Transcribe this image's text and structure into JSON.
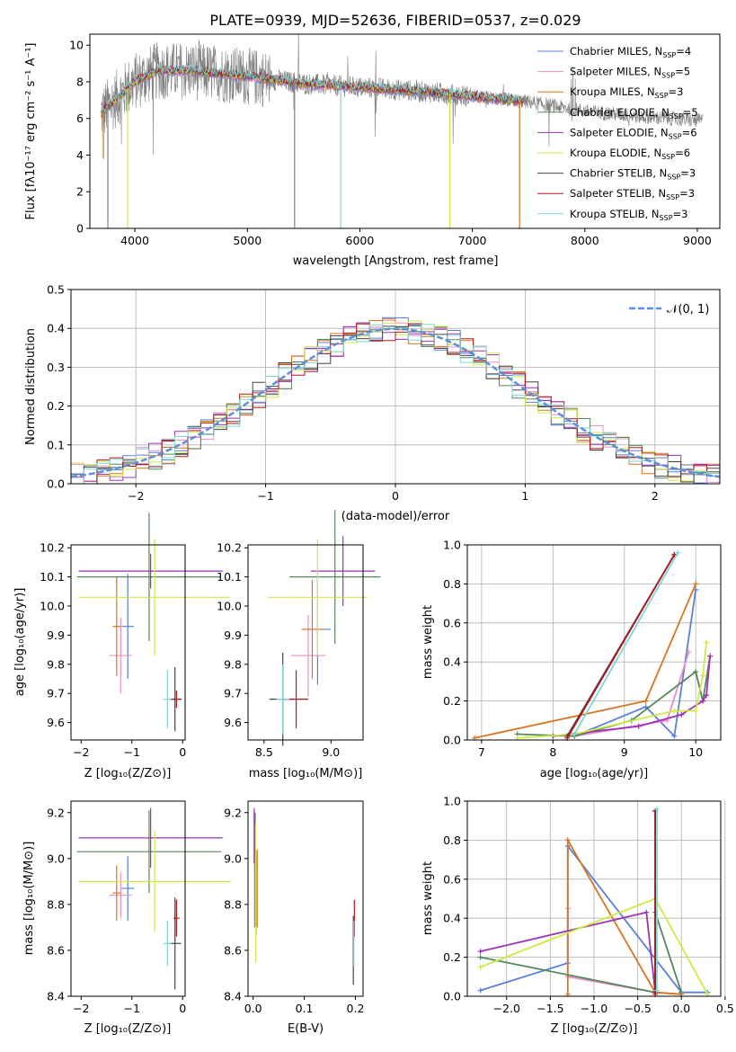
{
  "title": "PLATE=0939, MJD=52636, FIBERID=0537, z=0.029",
  "series_styles": [
    {
      "name": "Chabrier MILES",
      "nssp": "4",
      "color": "#5b7fd9"
    },
    {
      "name": "Salpeter MILES",
      "nssp": "5",
      "color": "#e88fc7"
    },
    {
      "name": "Kroupa MILES",
      "nssp": "3",
      "color": "#d9741f"
    },
    {
      "name": "Chabrier ELODIE",
      "nssp": "5",
      "color": "#55875c"
    },
    {
      "name": "Salpeter ELODIE",
      "nssp": "6",
      "color": "#9b33b5"
    },
    {
      "name": "Kroupa ELODIE",
      "nssp": "6",
      "color": "#cdea45"
    },
    {
      "name": "Chabrier STELIB",
      "nssp": "3",
      "color": "#444444"
    },
    {
      "name": "Salpeter STELIB",
      "nssp": "3",
      "color": "#b5161c"
    },
    {
      "name": "Kroupa STELIB",
      "nssp": "3",
      "color": "#7fd6d6"
    }
  ],
  "chart_data": [
    {
      "type": "line",
      "panel": "spectrum",
      "title": "PLATE=0939, MJD=52636, FIBERID=0537, z=0.029",
      "xlabel": "wavelength [Angstrom, rest frame]",
      "ylabel": "Flux [fλ10⁻¹⁷ erg cm⁻² s⁻¹ A⁻¹]",
      "xlim": [
        3600,
        9200
      ],
      "ylim": [
        0,
        10.6
      ],
      "xticks": [
        "4000",
        "5000",
        "6000",
        "7000",
        "8000",
        "9000"
      ],
      "yticks": [
        "0",
        "2",
        "4",
        "6",
        "8",
        "10"
      ],
      "data_color": "#808080",
      "continuum": {
        "x": [
          3700,
          4000,
          4200,
          4500,
          5000,
          5500,
          6000,
          6500,
          7000,
          7500,
          8000,
          8500,
          9000
        ],
        "y": [
          6.3,
          8.0,
          8.6,
          8.6,
          8.3,
          7.9,
          7.7,
          7.5,
          7.2,
          6.9,
          6.4,
          6.1,
          5.9
        ]
      },
      "model_range": [
        3700,
        7450
      ],
      "legend_position": "top-right"
    },
    {
      "type": "line",
      "panel": "residuals",
      "xlabel": "(data-model)/error",
      "ylabel": "Normed distribution",
      "xlim": [
        -2.5,
        2.5
      ],
      "ylim": [
        0,
        0.5
      ],
      "xticks": [
        "−2",
        "−1",
        "0",
        "1",
        "2"
      ],
      "yticks": [
        "0.0",
        "0.1",
        "0.2",
        "0.3",
        "0.4",
        "0.5"
      ],
      "gaussian_label": "𝒩(0, 1)",
      "gaussian_color": "#5b8fd9",
      "bin_width": 0.1,
      "legend_position": "top-right"
    },
    {
      "type": "scatter",
      "panel": "age-vs-Z",
      "xlabel": "Z [log₁₀(Z/Z⊙)]",
      "ylabel": "age  [log₁₀(age/yr)]",
      "xlim": [
        -2.2,
        0.05
      ],
      "ylim": [
        9.54,
        10.21
      ],
      "xticks": [
        "−2",
        "−1",
        "0"
      ],
      "xtick_values": [
        -2,
        -1,
        0
      ],
      "yticks": [
        "9.6",
        "9.7",
        "9.8",
        "9.9",
        "10.0",
        "10.1",
        "10.2"
      ],
      "ytick_values": [
        9.6,
        9.7,
        9.8,
        9.9,
        10.0,
        10.1,
        10.2
      ],
      "points": [
        {
          "x": -1.08,
          "y": 9.93,
          "xerr": 0.12,
          "yerr": 0.18
        },
        {
          "x": -1.22,
          "y": 9.83,
          "xerr": 0.22,
          "yerr": 0.13
        },
        {
          "x": -1.3,
          "y": 9.93,
          "xerr": 0.08,
          "yerr": 0.17
        },
        {
          "x": -0.66,
          "y": 10.1,
          "xerr": 1.42,
          "yerr": 0.22
        },
        {
          "x": -0.63,
          "y": 10.12,
          "xerr": 1.42,
          "yerr": 0.06
        },
        {
          "x": -0.55,
          "y": 10.03,
          "xerr": 1.5,
          "yerr": 0.2
        },
        {
          "x": -0.15,
          "y": 9.68,
          "xerr": 0.12,
          "yerr": 0.11
        },
        {
          "x": -0.12,
          "y": 9.68,
          "xerr": 0.1,
          "yerr": 0.03
        },
        {
          "x": -0.3,
          "y": 9.68,
          "xerr": 0.08,
          "yerr": 0.1
        }
      ]
    },
    {
      "type": "scatter",
      "panel": "age-vs-mass",
      "xlabel": "mass [log₁₀(M/M⊙)]",
      "ylabel": "",
      "xlim": [
        8.38,
        9.24
      ],
      "ylim": [
        9.54,
        10.21
      ],
      "xticks": [
        "8.5",
        "9.0"
      ],
      "xtick_values": [
        8.5,
        9.0
      ],
      "yticks": [
        "9.6",
        "9.7",
        "9.8",
        "9.9",
        "10.0",
        "10.1",
        "10.2"
      ],
      "ytick_values": [
        9.6,
        9.7,
        9.8,
        9.9,
        10.0,
        10.1,
        10.2
      ],
      "points": [
        {
          "x": 8.9,
          "y": 9.92,
          "xerr": 0.1,
          "yerr": 0.19
        },
        {
          "x": 8.83,
          "y": 9.83,
          "xerr": 0.13,
          "yerr": 0.14
        },
        {
          "x": 8.86,
          "y": 9.92,
          "xerr": 0.08,
          "yerr": 0.17
        },
        {
          "x": 9.03,
          "y": 10.1,
          "xerr": 0.34,
          "yerr": 0.23
        },
        {
          "x": 9.09,
          "y": 10.12,
          "xerr": 0.24,
          "yerr": 0.12
        },
        {
          "x": 8.9,
          "y": 10.03,
          "xerr": 0.37,
          "yerr": 0.2
        },
        {
          "x": 8.64,
          "y": 9.68,
          "xerr": 0.1,
          "yerr": 0.16
        },
        {
          "x": 8.74,
          "y": 9.68,
          "xerr": 0.09,
          "yerr": 0.1
        },
        {
          "x": 8.64,
          "y": 9.68,
          "xerr": 0.05,
          "yerr": 0.12
        }
      ]
    },
    {
      "type": "line",
      "panel": "weight-vs-age",
      "xlabel": "age  [log₁₀(age/yr)]",
      "ylabel": "mass weight",
      "xlim": [
        6.8,
        10.35
      ],
      "ylim": [
        0,
        1
      ],
      "xticks": [
        "7",
        "8",
        "9",
        "10"
      ],
      "xtick_values": [
        7,
        8,
        9,
        10
      ],
      "yticks": [
        "0.0",
        "0.2",
        "0.4",
        "0.6",
        "0.8",
        "1.0"
      ],
      "ytick_values": [
        0,
        0.2,
        0.4,
        0.6,
        0.8,
        1.0
      ],
      "series": [
        {
          "x": [
            8.3,
            9.3,
            9.7,
            10.0
          ],
          "y": [
            0.02,
            0.17,
            0.02,
            0.77
          ]
        },
        {
          "x": [
            8.3,
            9.6,
            9.9
          ],
          "y": [
            0.02,
            0.1,
            0.45
          ]
        },
        {
          "x": [
            6.9,
            9.3,
            10.0
          ],
          "y": [
            0.01,
            0.2,
            0.8
          ]
        },
        {
          "x": [
            7.5,
            8.3,
            9.1,
            10.0,
            10.1,
            10.2
          ],
          "y": [
            0.03,
            0.02,
            0.1,
            0.35,
            0.2,
            0.43
          ]
        },
        {
          "x": [
            8.0,
            9.2,
            9.8,
            10.1,
            10.15,
            10.2
          ],
          "y": [
            0.02,
            0.07,
            0.13,
            0.2,
            0.23,
            0.43
          ]
        },
        {
          "x": [
            7.5,
            8.3,
            9.7,
            10.0,
            10.1,
            10.15
          ],
          "y": [
            0.01,
            0.03,
            0.15,
            0.15,
            0.33,
            0.5
          ]
        },
        {
          "x": [
            8.2,
            9.7
          ],
          "y": [
            0.02,
            0.95
          ]
        },
        {
          "x": [
            8.2,
            9.7
          ],
          "y": [
            0.01,
            0.95
          ]
        },
        {
          "x": [
            8.3,
            9.75
          ],
          "y": [
            0.03,
            0.96
          ]
        }
      ]
    },
    {
      "type": "scatter",
      "panel": "mass-vs-Z",
      "xlabel": "Z [log₁₀(Z/Z⊙)]",
      "ylabel": "mass [log₁₀(M/M⊙)]",
      "xlim": [
        -2.2,
        0.05
      ],
      "ylim": [
        8.4,
        9.25
      ],
      "xticks": [
        "−2",
        "−1",
        "0"
      ],
      "xtick_values": [
        -2,
        -1,
        0
      ],
      "yticks": [
        "8.4",
        "8.6",
        "8.8",
        "9.0",
        "9.2"
      ],
      "ytick_values": [
        8.4,
        8.6,
        8.8,
        9.0,
        9.2
      ],
      "points": [
        {
          "x": -1.08,
          "y": 8.87,
          "xerr": 0.12,
          "yerr": 0.14
        },
        {
          "x": -1.22,
          "y": 8.84,
          "xerr": 0.22,
          "yerr": 0.1
        },
        {
          "x": -1.3,
          "y": 8.85,
          "xerr": 0.08,
          "yerr": 0.12
        },
        {
          "x": -0.66,
          "y": 9.03,
          "xerr": 1.42,
          "yerr": 0.18
        },
        {
          "x": -0.63,
          "y": 9.09,
          "xerr": 1.42,
          "yerr": 0.13
        },
        {
          "x": -0.55,
          "y": 8.9,
          "xerr": 1.5,
          "yerr": 0.22
        },
        {
          "x": -0.15,
          "y": 8.63,
          "xerr": 0.12,
          "yerr": 0.2
        },
        {
          "x": -0.12,
          "y": 8.74,
          "xerr": 0.06,
          "yerr": 0.08
        },
        {
          "x": -0.3,
          "y": 8.63,
          "xerr": 0.08,
          "yerr": 0.1
        }
      ]
    },
    {
      "type": "scatter",
      "panel": "mass-vs-EBV",
      "xlabel": "E(B-V)",
      "ylabel": "",
      "xlim": [
        -0.01,
        0.215
      ],
      "ylim": [
        8.4,
        9.25
      ],
      "xticks": [
        "0.0",
        "0.1",
        "0.2"
      ],
      "xtick_values": [
        0,
        0.1,
        0.2
      ],
      "yticks": [
        "8.4",
        "8.6",
        "8.8",
        "9.0",
        "9.2"
      ],
      "ytick_values": [
        8.4,
        8.6,
        8.8,
        9.0,
        9.2
      ],
      "points": [
        {
          "x": 0.003,
          "y": 8.95,
          "yerr": 0.25
        },
        {
          "x": 0.006,
          "y": 8.85,
          "yerr": 0.18
        },
        {
          "x": 0.008,
          "y": 8.87,
          "yerr": 0.17
        },
        {
          "x": 0.004,
          "y": 9.08,
          "yerr": 0.12
        },
        {
          "x": 0.002,
          "y": 9.1,
          "yerr": 0.12
        },
        {
          "x": 0.005,
          "y": 8.85,
          "yerr": 0.3
        },
        {
          "x": 0.196,
          "y": 8.6,
          "yerr": 0.15
        },
        {
          "x": 0.198,
          "y": 8.74,
          "yerr": 0.08
        },
        {
          "x": 0.197,
          "y": 8.63,
          "yerr": 0.1
        }
      ]
    },
    {
      "type": "line",
      "panel": "weight-vs-Z",
      "xlabel": "Z [log₁₀(Z/Z⊙)]",
      "ylabel": "mass weight",
      "xlim": [
        -2.45,
        0.45
      ],
      "ylim": [
        0,
        1
      ],
      "xticks": [
        "−2.0",
        "−1.5",
        "−1.0",
        "−0.5",
        "0.0",
        "0.5"
      ],
      "xtick_values": [
        -2,
        -1.5,
        -1,
        -0.5,
        0,
        0.5
      ],
      "yticks": [
        "0.0",
        "0.2",
        "0.4",
        "0.6",
        "0.8",
        "1.0"
      ],
      "ytick_values": [
        0,
        0.2,
        0.4,
        0.6,
        0.8,
        1.0
      ],
      "series": [
        {
          "x": [
            -2.3,
            -1.3,
            -1.3,
            0.0,
            0.3
          ],
          "y": [
            0.03,
            0.17,
            0.77,
            0.02,
            0.02
          ]
        },
        {
          "x": [
            -1.3,
            -1.3,
            -0.3,
            0.0
          ],
          "y": [
            0.45,
            0.1,
            0.02,
            0.01
          ]
        },
        {
          "x": [
            -1.3,
            -1.3,
            -0.3,
            0.0
          ],
          "y": [
            0.01,
            0.8,
            0.02,
            0.01
          ]
        },
        {
          "x": [
            -2.3,
            -0.3,
            -0.3,
            0.0
          ],
          "y": [
            0.2,
            0.02,
            0.43,
            0.02
          ]
        },
        {
          "x": [
            -2.3,
            -0.4,
            -0.3
          ],
          "y": [
            0.23,
            0.43,
            0.02
          ]
        },
        {
          "x": [
            -2.3,
            -0.3,
            0.3
          ],
          "y": [
            0.15,
            0.5,
            0.01
          ]
        },
        {
          "x": [
            -0.3,
            -0.3
          ],
          "y": [
            0.02,
            0.95
          ]
        },
        {
          "x": [
            -0.3,
            -0.3
          ],
          "y": [
            0.01,
            0.95
          ]
        },
        {
          "x": [
            -0.28,
            -0.28
          ],
          "y": [
            0.03,
            0.96
          ]
        }
      ]
    }
  ]
}
